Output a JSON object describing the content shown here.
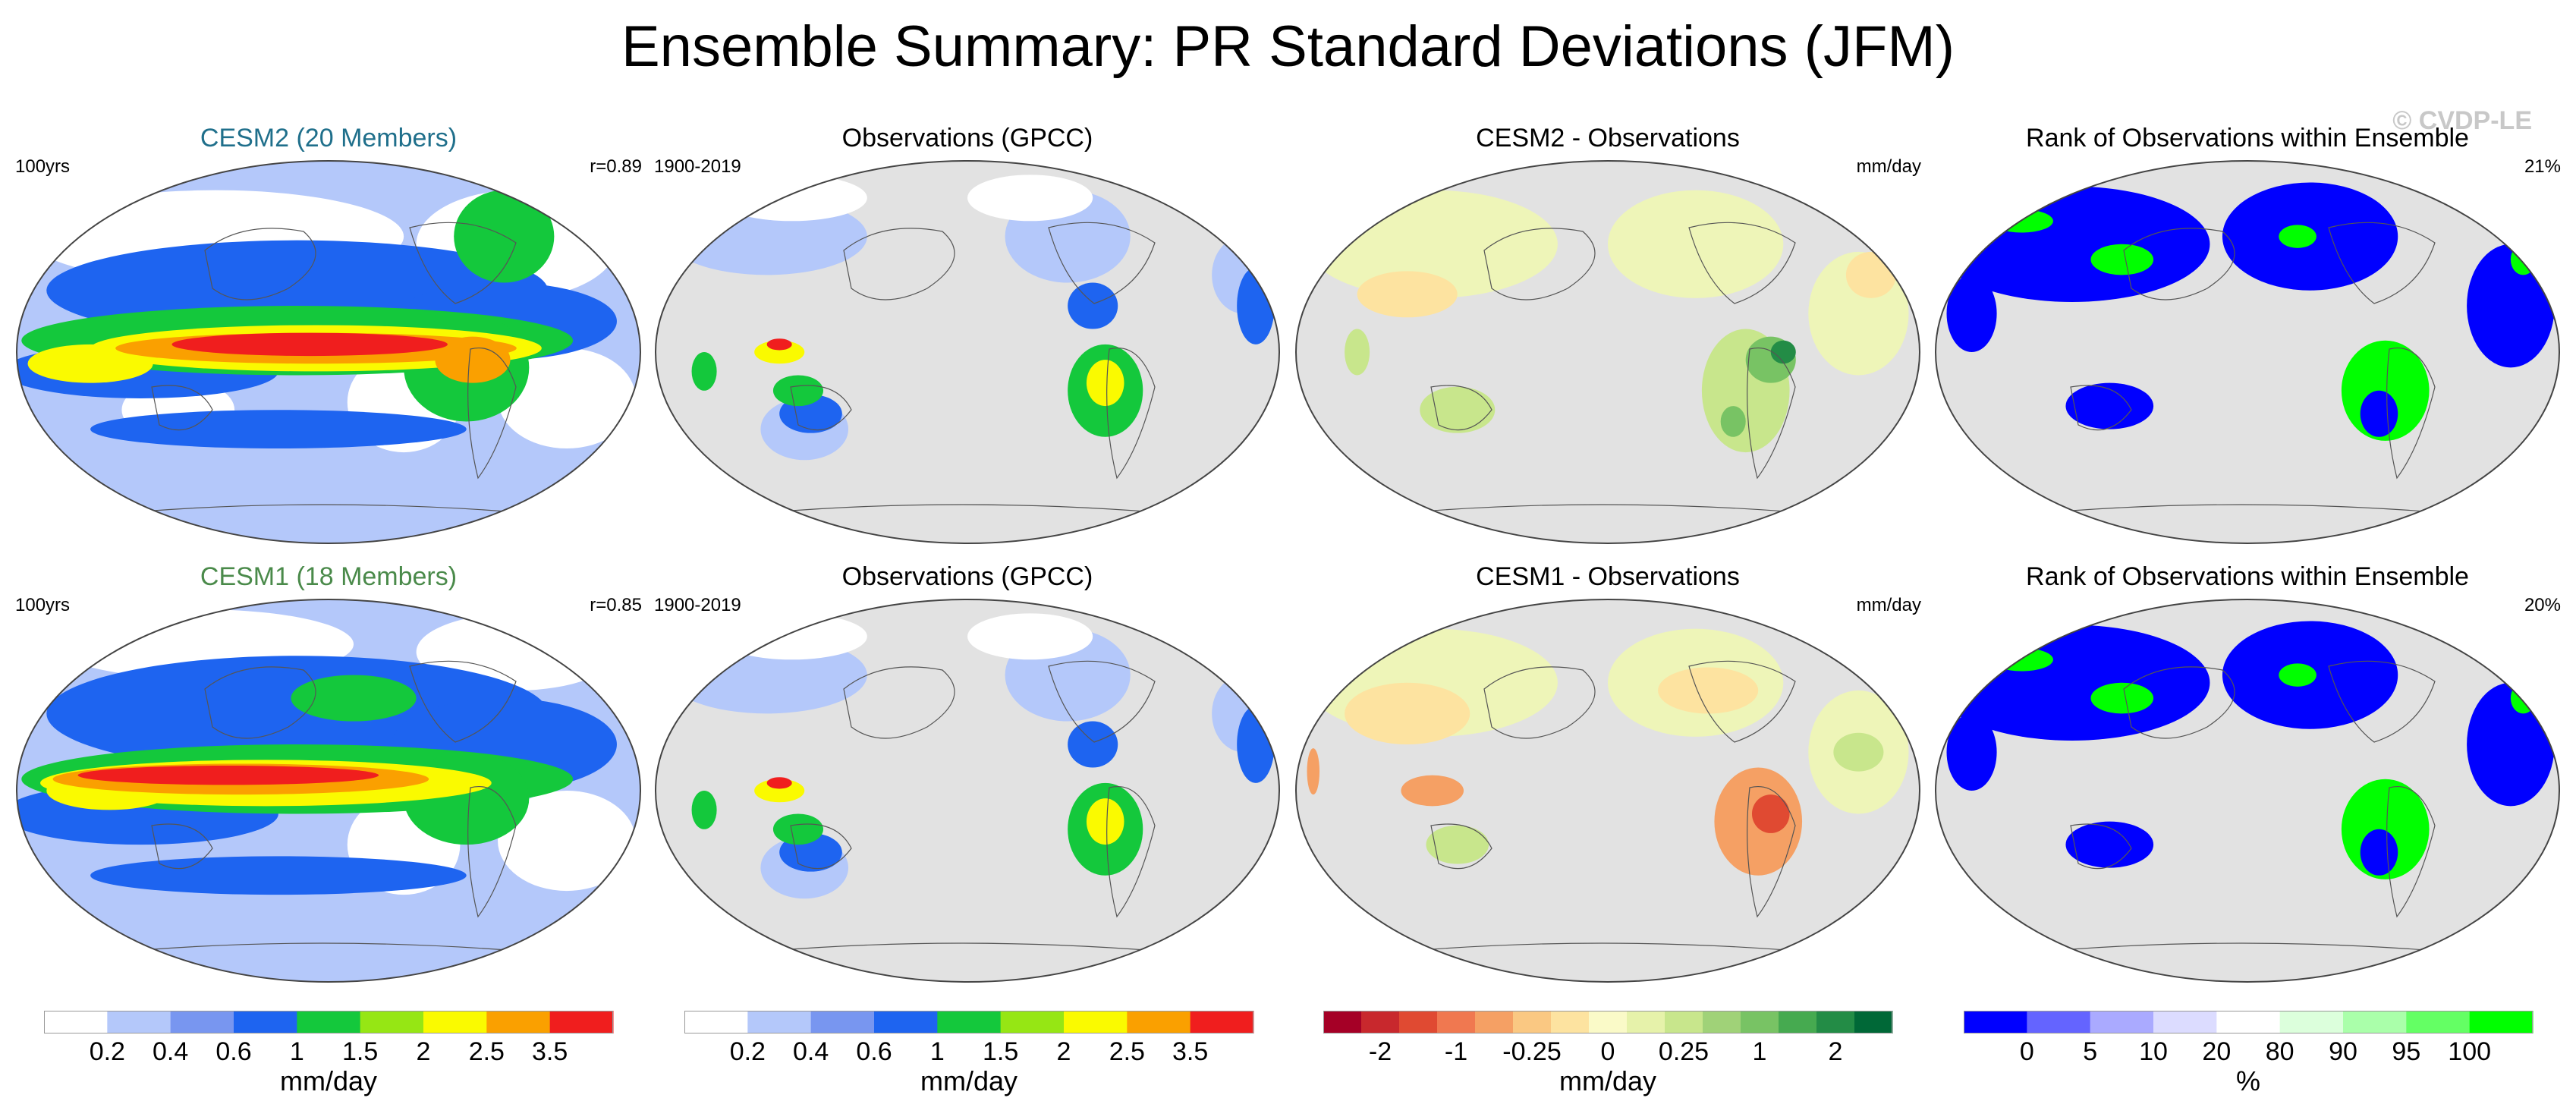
{
  "title": "Ensemble Summary: PR Standard Deviations (JFM)",
  "watermark": "© CVDP-LE",
  "panels": [
    {
      "id": "r1c1",
      "title": "CESM2 (20 Members)",
      "title_color": "#1f6f8b",
      "left": "100yrs",
      "right": "r=0.89",
      "map_style": "model-a"
    },
    {
      "id": "r1c2",
      "title": "Observations (GPCC)",
      "title_color": "#000000",
      "left": "1900-2019",
      "right": "",
      "map_style": "obs-std"
    },
    {
      "id": "r1c3",
      "title": "CESM2 - Observations",
      "title_color": "#000000",
      "left": "",
      "right": "mm/day",
      "map_style": "diff"
    },
    {
      "id": "r1c4",
      "title": "Rank of Observations within Ensemble",
      "title_color": "#000000",
      "left": "",
      "right": "21%",
      "map_style": "rank"
    },
    {
      "id": "r2c1",
      "title": "CESM1 (18 Members)",
      "title_color": "#4a8a4a",
      "left": "100yrs",
      "right": "r=0.85",
      "map_style": "model-b"
    },
    {
      "id": "r2c2",
      "title": "Observations (GPCC)",
      "title_color": "#000000",
      "left": "1900-2019",
      "right": "",
      "map_style": "obs-std"
    },
    {
      "id": "r2c3",
      "title": "CESM1 - Observations",
      "title_color": "#000000",
      "left": "",
      "right": "mm/day",
      "map_style": "diff-dry"
    },
    {
      "id": "r2c4",
      "title": "Rank of Observations within Ensemble",
      "title_color": "#000000",
      "left": "",
      "right": "20%",
      "map_style": "rank"
    }
  ],
  "colorbars": [
    {
      "id": "cb1",
      "unit": "mm/day",
      "colors": [
        "#ffffff",
        "#b4c8fa",
        "#7896f0",
        "#1e64f0",
        "#14c83c",
        "#96e614",
        "#fafa00",
        "#faa000",
        "#f01e1e"
      ],
      "ticks": [
        "0.2",
        "0.4",
        "0.6",
        "1",
        "1.5",
        "2",
        "2.5",
        "3.5"
      ]
    },
    {
      "id": "cb2",
      "unit": "mm/day",
      "colors": [
        "#ffffff",
        "#b4c8fa",
        "#7896f0",
        "#1e64f0",
        "#14c83c",
        "#96e614",
        "#fafa00",
        "#faa000",
        "#f01e1e"
      ],
      "ticks": [
        "0.2",
        "0.4",
        "0.6",
        "1",
        "1.5",
        "2",
        "2.5",
        "3.5"
      ]
    },
    {
      "id": "cb3",
      "unit": "mm/day",
      "colors": [
        "#a50026",
        "#c8282d",
        "#e04a32",
        "#f07850",
        "#f5a064",
        "#fac882",
        "#fde3a0",
        "#fafac8",
        "#e6f2aa",
        "#c8e68c",
        "#a0d278",
        "#78c364",
        "#46aa50",
        "#238c46",
        "#006837"
      ],
      "ticks": [
        "-2",
        "-1",
        "-0.25",
        "0",
        "0.25",
        "1",
        "2"
      ],
      "tick_slots": [
        1,
        3,
        5,
        7,
        9,
        11,
        13
      ]
    },
    {
      "id": "cb4",
      "unit": "%",
      "colors": [
        "#0000ff",
        "#6464ff",
        "#aaaaff",
        "#dcdcff",
        "#ffffff",
        "#dcffdc",
        "#aaffaa",
        "#64ff64",
        "#00ff00"
      ],
      "ticks": [
        "0",
        "5",
        "10",
        "20",
        "80",
        "90",
        "95",
        "100"
      ]
    }
  ]
}
